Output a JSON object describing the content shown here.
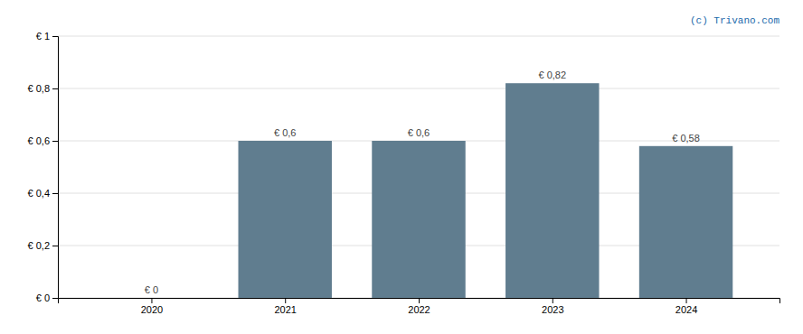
{
  "chart_data": {
    "type": "bar",
    "x": [
      2020,
      2021,
      2022,
      2023,
      2024
    ],
    "values": [
      0.0,
      0.6,
      0.6,
      0.82,
      0.58
    ],
    "value_labels": [
      "€ 0",
      "€ 0,6",
      "€ 0,6",
      "€ 0,82",
      "€ 0,58"
    ],
    "data_labels": true,
    "color": "#607d8f",
    "xlim": [
      2019.3,
      2024.7
    ],
    "xticks": [
      2020,
      2021,
      2022,
      2023,
      2024
    ],
    "ylim": [
      0,
      1.0
    ],
    "yticks": [
      {
        "value": 0,
        "label": "€ 0"
      },
      {
        "value": 0.2,
        "label": "€ 0,2"
      },
      {
        "value": 0.4,
        "label": "€ 0,4"
      },
      {
        "value": 0.6,
        "label": "€ 0,6"
      },
      {
        "value": 0.8,
        "label": "€ 0,8"
      },
      {
        "value": 1.0,
        "label": "€ 1"
      }
    ],
    "grid": true,
    "annotations": [
      "(c) Trivano.com"
    ]
  }
}
